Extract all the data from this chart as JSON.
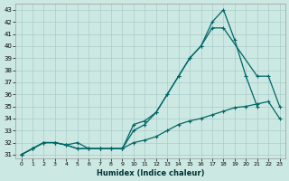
{
  "xlabel": "Humidex (Indice chaleur)",
  "xlim": [
    -0.5,
    23.5
  ],
  "ylim": [
    30.7,
    43.5
  ],
  "xticks": [
    0,
    1,
    2,
    3,
    4,
    5,
    6,
    7,
    8,
    9,
    10,
    11,
    12,
    13,
    14,
    15,
    16,
    17,
    18,
    19,
    20,
    21,
    22,
    23
  ],
  "yticks": [
    31,
    32,
    33,
    34,
    35,
    36,
    37,
    38,
    39,
    40,
    41,
    42,
    43
  ],
  "background_color": "#cce8e2",
  "grid_color": "#aacccc",
  "line_color": "#006666",
  "line1_x": [
    0,
    1,
    2,
    3,
    4,
    5,
    6,
    7,
    8,
    9,
    10,
    11,
    12,
    13,
    14,
    15,
    16,
    17,
    18,
    19,
    20,
    21
  ],
  "line1_y": [
    31,
    31.5,
    32,
    32,
    31.8,
    32,
    31.5,
    31.5,
    31.5,
    31.5,
    33.5,
    33.8,
    34.5,
    36,
    37.5,
    39,
    40,
    42,
    43,
    40.5,
    37.5,
    35
  ],
  "line2_x": [
    0,
    1,
    2,
    3,
    4,
    5,
    6,
    7,
    8,
    9,
    10,
    11,
    12,
    13,
    14,
    15,
    16,
    17,
    18,
    21,
    22,
    23
  ],
  "line2_y": [
    31,
    31.5,
    32,
    32,
    31.8,
    31.5,
    31.5,
    31.5,
    31.5,
    31.5,
    33,
    33.5,
    34.5,
    36,
    37.5,
    39,
    40,
    41.5,
    41.5,
    37.5,
    37.5,
    35
  ],
  "line3_x": [
    0,
    1,
    2,
    3,
    4,
    5,
    6,
    7,
    8,
    9,
    10,
    11,
    12,
    13,
    14,
    15,
    16,
    17,
    18,
    19,
    20,
    21,
    22,
    23
  ],
  "line3_y": [
    31,
    31.5,
    32,
    32,
    31.8,
    31.5,
    31.5,
    31.5,
    31.5,
    31.5,
    32,
    32.2,
    32.5,
    33,
    33.5,
    33.8,
    34,
    34.3,
    34.6,
    34.9,
    35,
    35.2,
    35.4,
    34
  ]
}
